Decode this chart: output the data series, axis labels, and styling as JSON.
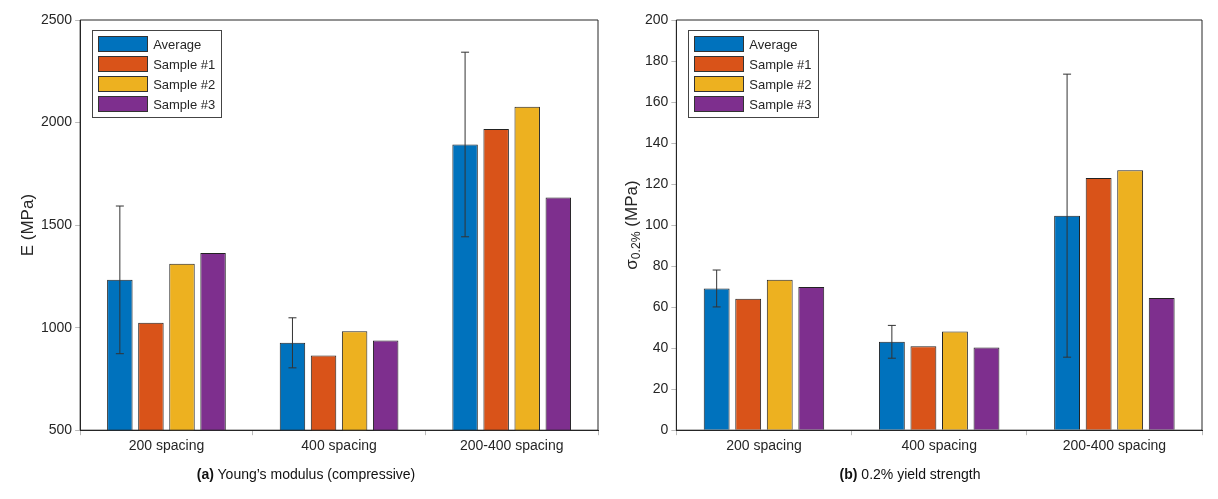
{
  "chart_data": [
    {
      "type": "bar",
      "title": "(a) Young’s modulus (compressive)",
      "ylabel": "E (MPa)",
      "categories": [
        "200 spacing",
        "400 spacing",
        "200-400 spacing"
      ],
      "series": [
        {
          "name": "Average",
          "color": "#0072bd",
          "values": [
            1233,
            926,
            1893
          ],
          "errors": [
            360,
            122,
            450
          ]
        },
        {
          "name": "Sample #1",
          "color": "#d95319",
          "values": [
            1024,
            864,
            1969
          ]
        },
        {
          "name": "Sample #2",
          "color": "#edb120",
          "values": [
            1312,
            983,
            2077
          ]
        },
        {
          "name": "Sample #3",
          "color": "#7e2f8e",
          "values": [
            1364,
            937,
            1634
          ]
        }
      ],
      "ylim": [
        500,
        2500
      ],
      "yticks": [
        500,
        1000,
        1500,
        2000,
        2500
      ],
      "grid": false,
      "legend": "top left"
    },
    {
      "type": "bar",
      "title": "(b) 0.2% yield strength",
      "ylabel": "σ$_{0.2%}$ (MPa)",
      "categories": [
        "200 spacing",
        "400 spacing",
        "200-400 spacing"
      ],
      "series": [
        {
          "name": "Average",
          "color": "#0072bd",
          "values": [
            69.1,
            43.1,
            104.6
          ],
          "errors": [
            9,
            8,
            69
          ]
        },
        {
          "name": "Sample #1",
          "color": "#d95319",
          "values": [
            64.1,
            40.9,
            123
          ]
        },
        {
          "name": "Sample #2",
          "color": "#edb120",
          "values": [
            73.4,
            48.1,
            126.8
          ]
        },
        {
          "name": "Sample #3",
          "color": "#7e2f8e",
          "values": [
            69.8,
            40.3,
            64.5
          ]
        }
      ],
      "ylim": [
        0,
        200
      ],
      "yticks": [
        0,
        20,
        40,
        60,
        80,
        100,
        120,
        140,
        160,
        180,
        200
      ],
      "grid": false,
      "legend": "top left"
    }
  ]
}
